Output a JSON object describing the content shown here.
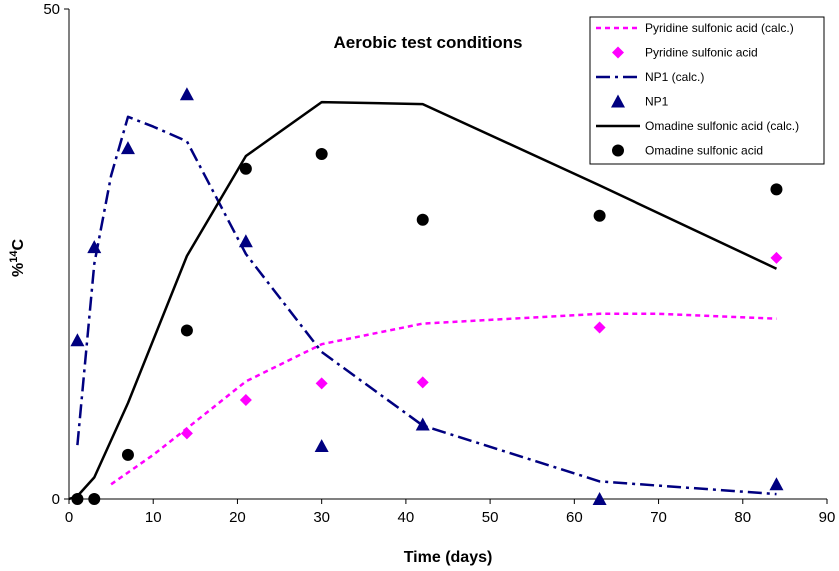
{
  "chart_data": {
    "type": "line",
    "title": "Aerobic test conditions",
    "xlabel": "Time (days)",
    "ylabel_prefix": "%",
    "ylabel_sup": "14",
    "ylabel_suffix": "C",
    "xlim": [
      0,
      90
    ],
    "ylim": [
      0,
      50
    ],
    "xticks": [
      0,
      10,
      20,
      30,
      40,
      50,
      60,
      70,
      80,
      90
    ],
    "yticks": [
      0,
      50
    ],
    "grid": false,
    "legend_position": "top-right",
    "series": [
      {
        "name": "Pyridine sulfonic acid (calc.)",
        "kind": "line",
        "dash": "short-dash",
        "color": "#ff00ff",
        "x": [
          5,
          10,
          14,
          21,
          30,
          42,
          63,
          70,
          84
        ],
        "y": [
          1.5,
          4.5,
          7.2,
          12.0,
          15.8,
          17.9,
          18.9,
          18.9,
          18.4
        ]
      },
      {
        "name": "Pyridine sulfonic acid",
        "kind": "marker",
        "marker": "diamond",
        "color": "#ff00ff",
        "x": [
          14,
          21,
          30,
          42,
          63,
          84
        ],
        "y": [
          6.7,
          10.1,
          11.8,
          11.9,
          17.5,
          24.6
        ]
      },
      {
        "name": "NP1 (calc.)",
        "kind": "line",
        "dash": "dash-dot",
        "color": "#000080",
        "x": [
          1,
          3,
          5,
          7,
          10,
          14,
          21,
          30,
          42,
          63,
          84
        ],
        "y": [
          5.5,
          24.0,
          33.0,
          39.0,
          38.0,
          36.5,
          25.0,
          15.0,
          7.5,
          1.8,
          0.5
        ]
      },
      {
        "name": "NP1",
        "kind": "marker",
        "marker": "triangle",
        "color": "#000080",
        "x": [
          1,
          3,
          7,
          14,
          21,
          30,
          42,
          63,
          84
        ],
        "y": [
          16.2,
          25.7,
          35.8,
          41.3,
          26.3,
          5.4,
          7.6,
          0.0,
          1.5
        ]
      },
      {
        "name": "Omadine sulfonic acid (calc.)",
        "kind": "line",
        "dash": "solid",
        "color": "#000000",
        "x": [
          0,
          1,
          3,
          7,
          14,
          21,
          30,
          42,
          63,
          84
        ],
        "y": [
          0.0,
          0.3,
          2.2,
          9.8,
          24.8,
          35.0,
          40.5,
          40.3,
          32.0,
          23.5
        ]
      },
      {
        "name": "Omadine sulfonic acid",
        "kind": "marker",
        "marker": "circle",
        "color": "#000000",
        "x": [
          1,
          3,
          7,
          14,
          21,
          30,
          42,
          63,
          84
        ],
        "y": [
          0.0,
          0.0,
          4.5,
          17.2,
          33.7,
          35.2,
          28.5,
          28.9,
          31.6
        ]
      }
    ]
  }
}
